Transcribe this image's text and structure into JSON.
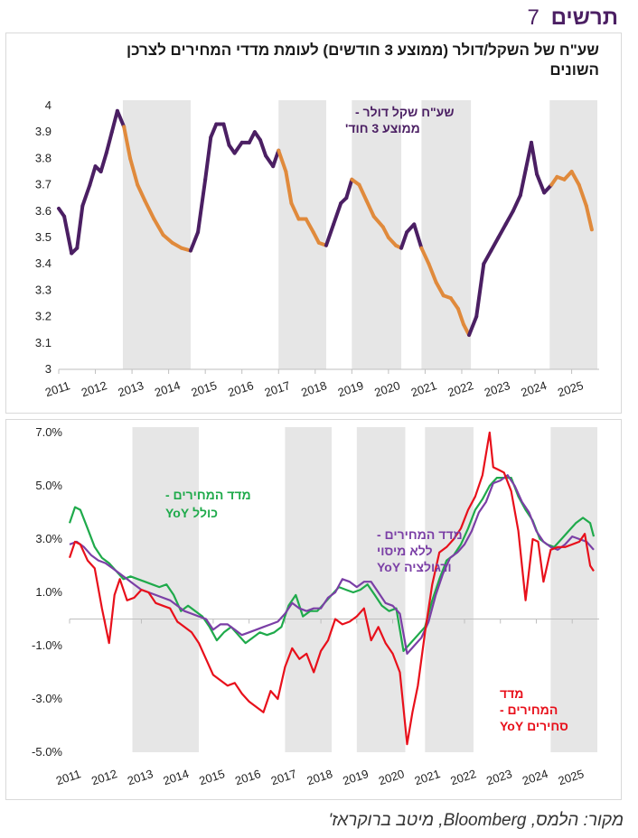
{
  "header": {
    "title": "תרשים",
    "number": "7"
  },
  "source": "מקור: הלמס, Bloomberg, מיטב ברוקראז'",
  "colors": {
    "purple": "#4b1f63",
    "orange": "#e08a3c",
    "green": "#1faa4b",
    "red": "#e8101b",
    "violet": "#7b3fa6",
    "shade": "#e6e6e6"
  },
  "chart_data": [
    {
      "type": "line",
      "title": "שע\"ח של השקל/דולר (ממוצע 3 חודשים) לעומת מדדי המחירים לצרכן השונים",
      "ylim": [
        3,
        4
      ],
      "yticks": [
        "3",
        "3.1",
        "3.2",
        "3.3",
        "3.4",
        "3.5",
        "3.6",
        "3.7",
        "3.8",
        "3.9",
        "4"
      ],
      "xticks": [
        "2011",
        "2012",
        "2013",
        "2014",
        "2015",
        "2016",
        "2017",
        "2018",
        "2019",
        "2020",
        "2021",
        "2022",
        "2023",
        "2024",
        "2025"
      ],
      "shaded_periods": [
        [
          2012.75,
          2014.6
        ],
        [
          2017.0,
          2018.3
        ],
        [
          2019.0,
          2020.35
        ],
        [
          2020.9,
          2022.25
        ],
        [
          2024.4,
          2025.7
        ]
      ],
      "series": [
        {
          "name": "שע\"ח שקל דולר - ממוצע 3 חוד'",
          "x": [
            2011.0,
            2011.15,
            2011.35,
            2011.5,
            2011.65,
            2011.85,
            2012.0,
            2012.15,
            2012.3,
            2012.45,
            2012.6,
            2012.78,
            2012.95,
            2013.15,
            2013.35,
            2013.6,
            2013.85,
            2014.1,
            2014.35,
            2014.6,
            2014.8,
            2015.0,
            2015.15,
            2015.3,
            2015.5,
            2015.65,
            2015.8,
            2016.0,
            2016.2,
            2016.35,
            2016.5,
            2016.65,
            2016.85,
            2017.0,
            2017.2,
            2017.35,
            2017.55,
            2017.75,
            2017.95,
            2018.1,
            2018.3,
            2018.5,
            2018.7,
            2018.85,
            2019.0,
            2019.2,
            2019.4,
            2019.6,
            2019.85,
            2020.0,
            2020.2,
            2020.35,
            2020.5,
            2020.7,
            2020.9,
            2021.1,
            2021.3,
            2021.5,
            2021.7,
            2021.9,
            2022.05,
            2022.2,
            2022.4,
            2022.6,
            2022.8,
            2023.0,
            2023.2,
            2023.4,
            2023.6,
            2023.75,
            2023.9,
            2024.05,
            2024.25,
            2024.45,
            2024.6,
            2024.8,
            2025.0,
            2025.2,
            2025.4,
            2025.55
          ],
          "y": [
            3.61,
            3.58,
            3.44,
            3.46,
            3.62,
            3.7,
            3.77,
            3.75,
            3.82,
            3.9,
            3.98,
            3.92,
            3.8,
            3.7,
            3.64,
            3.57,
            3.51,
            3.48,
            3.46,
            3.45,
            3.52,
            3.72,
            3.88,
            3.93,
            3.93,
            3.85,
            3.82,
            3.86,
            3.86,
            3.9,
            3.87,
            3.81,
            3.77,
            3.83,
            3.75,
            3.63,
            3.57,
            3.57,
            3.52,
            3.48,
            3.47,
            3.55,
            3.63,
            3.65,
            3.72,
            3.7,
            3.64,
            3.58,
            3.54,
            3.5,
            3.47,
            3.46,
            3.52,
            3.55,
            3.46,
            3.4,
            3.33,
            3.28,
            3.27,
            3.23,
            3.17,
            3.13,
            3.2,
            3.4,
            3.45,
            3.5,
            3.55,
            3.6,
            3.66,
            3.76,
            3.86,
            3.74,
            3.67,
            3.7,
            3.73,
            3.72,
            3.75,
            3.7,
            3.62,
            3.53
          ],
          "color_segments": "orange inside shaded periods, purple outside"
        }
      ],
      "annotations": [
        {
          "text": "שע\"ח שקל דולר -",
          "color": "#4b1f63"
        },
        {
          "text": "ממוצע 3 חוד'",
          "color": "#4b1f63"
        }
      ]
    },
    {
      "type": "line",
      "ylim": [
        -5,
        7
      ],
      "yticks": [
        "-5.0%",
        "-3.0%",
        "-1.0%",
        "1.0%",
        "3.0%",
        "5.0%",
        "7.0%"
      ],
      "xticks": [
        "2011",
        "2012",
        "2013",
        "2014",
        "2015",
        "2016",
        "2017",
        "2018",
        "2019",
        "2020",
        "2021",
        "2022",
        "2023",
        "2024",
        "2025"
      ],
      "shaded_periods": [
        [
          2012.75,
          2014.6
        ],
        [
          2017.0,
          2018.3
        ],
        [
          2019.0,
          2020.35
        ],
        [
          2020.9,
          2022.25
        ],
        [
          2024.4,
          2025.7
        ]
      ],
      "series": [
        {
          "name": "מדד המחירים - כולל YoY",
          "color": "#1faa4b",
          "x": [
            2011.0,
            2011.15,
            2011.3,
            2011.5,
            2011.7,
            2011.9,
            2012.1,
            2012.3,
            2012.5,
            2012.7,
            2012.9,
            2013.1,
            2013.3,
            2013.5,
            2013.7,
            2013.9,
            2014.1,
            2014.3,
            2014.5,
            2014.7,
            2014.9,
            2015.1,
            2015.3,
            2015.5,
            2015.7,
            2015.9,
            2016.1,
            2016.3,
            2016.5,
            2016.7,
            2016.9,
            2017.1,
            2017.3,
            2017.5,
            2017.7,
            2017.9,
            2018.1,
            2018.3,
            2018.5,
            2018.7,
            2018.9,
            2019.1,
            2019.3,
            2019.5,
            2019.7,
            2019.9,
            2020.1,
            2020.3,
            2020.5,
            2020.7,
            2020.9,
            2021.1,
            2021.3,
            2021.5,
            2021.7,
            2021.9,
            2022.1,
            2022.3,
            2022.5,
            2022.7,
            2022.9,
            2023.1,
            2023.3,
            2023.5,
            2023.7,
            2023.9,
            2024.1,
            2024.3,
            2024.5,
            2024.7,
            2024.9,
            2025.1,
            2025.3,
            2025.5,
            2025.6
          ],
          "y": [
            3.6,
            4.2,
            4.1,
            3.4,
            2.7,
            2.3,
            2.1,
            1.8,
            1.5,
            1.6,
            1.5,
            1.4,
            1.3,
            1.2,
            1.3,
            0.9,
            0.3,
            0.5,
            0.3,
            0.1,
            -0.3,
            -0.8,
            -0.5,
            -0.3,
            -0.6,
            -0.9,
            -0.7,
            -0.5,
            -0.6,
            -0.5,
            -0.3,
            0.5,
            0.9,
            0.1,
            0.3,
            0.3,
            0.6,
            0.9,
            1.2,
            1.1,
            1.0,
            1.1,
            1.3,
            0.9,
            0.5,
            0.3,
            0.4,
            -1.2,
            -0.9,
            -0.6,
            -0.3,
            0.7,
            1.5,
            2.2,
            2.4,
            2.8,
            3.4,
            4.1,
            4.5,
            5.0,
            5.3,
            5.3,
            5.3,
            4.6,
            4.1,
            3.7,
            3.0,
            2.8,
            2.7,
            3.0,
            3.3,
            3.6,
            3.8,
            3.6,
            3.1
          ]
        },
        {
          "name": "מדד המחירים - ללא מיסוי ורגולציה YoY",
          "color": "#7b3fa6",
          "x": [
            2011.0,
            2011.2,
            2011.4,
            2011.6,
            2011.8,
            2012.0,
            2012.2,
            2012.4,
            2012.6,
            2012.8,
            2013.0,
            2013.2,
            2013.4,
            2013.6,
            2013.8,
            2014.0,
            2014.2,
            2014.4,
            2014.6,
            2014.8,
            2015.0,
            2015.2,
            2015.4,
            2015.6,
            2015.8,
            2016.0,
            2016.2,
            2016.4,
            2016.6,
            2016.8,
            2017.0,
            2017.2,
            2017.4,
            2017.6,
            2017.8,
            2018.0,
            2018.2,
            2018.4,
            2018.6,
            2018.8,
            2019.0,
            2019.2,
            2019.4,
            2019.6,
            2019.8,
            2020.0,
            2020.2,
            2020.4,
            2020.6,
            2020.8,
            2021.0,
            2021.2,
            2021.4,
            2021.6,
            2021.8,
            2022.0,
            2022.2,
            2022.4,
            2022.6,
            2022.8,
            2023.0,
            2023.2,
            2023.4,
            2023.6,
            2023.8,
            2024.0,
            2024.2,
            2024.4,
            2024.6,
            2024.8,
            2025.0,
            2025.2,
            2025.4,
            2025.6
          ],
          "y": [
            2.8,
            2.9,
            2.7,
            2.4,
            2.2,
            2.1,
            1.9,
            1.7,
            1.5,
            1.3,
            1.1,
            1.0,
            0.9,
            0.8,
            0.7,
            0.5,
            0.3,
            0.2,
            0.1,
            0.0,
            -0.4,
            -0.2,
            -0.2,
            -0.4,
            -0.6,
            -0.5,
            -0.4,
            -0.3,
            -0.2,
            -0.1,
            0.2,
            0.6,
            0.4,
            0.3,
            0.4,
            0.4,
            0.8,
            1.0,
            1.5,
            1.4,
            1.2,
            1.4,
            1.4,
            1.0,
            0.6,
            0.5,
            0.2,
            -1.3,
            -1.0,
            -0.7,
            -0.1,
            0.9,
            1.7,
            2.3,
            2.5,
            2.8,
            3.3,
            4.0,
            4.4,
            5.1,
            5.2,
            5.4,
            5.0,
            4.4,
            4.0,
            3.3,
            2.9,
            2.7,
            2.6,
            2.8,
            3.1,
            3.0,
            2.9,
            2.6
          ]
        },
        {
          "name": "מדד המחירים - סחירים YoY",
          "color": "#e8101b",
          "x": [
            2011.0,
            2011.15,
            2011.3,
            2011.5,
            2011.7,
            2011.9,
            2012.1,
            2012.25,
            2012.4,
            2012.6,
            2012.8,
            2013.0,
            2013.2,
            2013.4,
            2013.6,
            2013.8,
            2014.0,
            2014.2,
            2014.4,
            2014.6,
            2014.8,
            2015.0,
            2015.2,
            2015.4,
            2015.6,
            2015.8,
            2016.0,
            2016.2,
            2016.4,
            2016.6,
            2016.8,
            2017.0,
            2017.2,
            2017.4,
            2017.6,
            2017.8,
            2018.0,
            2018.2,
            2018.4,
            2018.6,
            2018.8,
            2019.0,
            2019.2,
            2019.4,
            2019.6,
            2019.8,
            2020.0,
            2020.2,
            2020.4,
            2020.55,
            2020.7,
            2020.9,
            2021.1,
            2021.3,
            2021.5,
            2021.7,
            2021.9,
            2022.1,
            2022.3,
            2022.5,
            2022.7,
            2022.8,
            2022.95,
            2023.1,
            2023.3,
            2023.5,
            2023.7,
            2023.9,
            2024.05,
            2024.2,
            2024.4,
            2024.6,
            2024.8,
            2025.0,
            2025.2,
            2025.35,
            2025.5,
            2025.6
          ],
          "y": [
            2.3,
            2.9,
            2.8,
            2.2,
            1.9,
            0.4,
            -0.9,
            0.9,
            1.5,
            0.7,
            0.8,
            1.1,
            1.0,
            0.6,
            0.5,
            0.4,
            -0.1,
            -0.3,
            -0.5,
            -0.9,
            -1.5,
            -2.1,
            -2.3,
            -2.5,
            -2.4,
            -2.8,
            -3.1,
            -3.3,
            -3.5,
            -2.7,
            -3.0,
            -1.8,
            -1.1,
            -1.5,
            -1.3,
            -2.0,
            -1.2,
            -0.8,
            0.0,
            -0.2,
            -0.1,
            0.1,
            0.4,
            -0.8,
            -0.3,
            -0.9,
            -1.3,
            -2.0,
            -4.7,
            -3.5,
            -2.5,
            -0.5,
            1.3,
            2.5,
            2.7,
            3.0,
            3.4,
            4.1,
            4.6,
            5.4,
            7.0,
            5.7,
            5.6,
            5.5,
            4.8,
            3.3,
            0.7,
            3.0,
            2.9,
            1.4,
            2.6,
            2.7,
            2.7,
            2.8,
            2.9,
            3.2,
            2.0,
            1.8
          ]
        }
      ],
      "annotations": [
        {
          "text": "מדד המחירים -",
          "color": "#1faa4b"
        },
        {
          "text": "כולל YoY",
          "color": "#1faa4b"
        },
        {
          "text": "מדד המחירים -",
          "color": "#7b3fa6"
        },
        {
          "text": "ללא מיסוי",
          "color": "#7b3fa6"
        },
        {
          "text": "ורגולציה YoY",
          "color": "#7b3fa6"
        },
        {
          "text": "מדד",
          "color": "#e8101b"
        },
        {
          "text": "המחירים -",
          "color": "#e8101b"
        },
        {
          "text": "סחירים YoY",
          "color": "#e8101b"
        }
      ]
    }
  ]
}
